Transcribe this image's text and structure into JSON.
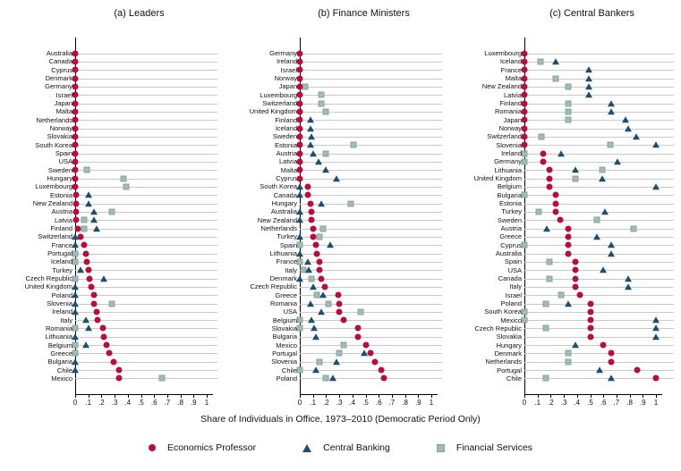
{
  "figure": {
    "xlabel": "Share of Individuals in Office, 1973–2010 (Democratic Period Only)",
    "x_ticks": [
      "0",
      ".1",
      ".2",
      ".3",
      ".4",
      ".5",
      ".6",
      ".7",
      ".8",
      ".9",
      "1"
    ]
  },
  "legend": [
    {
      "key": "ep",
      "label": "Economics Professor",
      "marker": "circle-icon",
      "color": "#b5103d"
    },
    {
      "key": "cb",
      "label": "Central Banking",
      "marker": "triangle-icon",
      "color": "#1f4e6d"
    },
    {
      "key": "fs",
      "label": "Financial Services",
      "marker": "square-icon",
      "color": "#a3bbb1"
    }
  ],
  "chart_data": [
    {
      "type": "scatter",
      "title": "(a) Leaders",
      "xlim": [
        0,
        1
      ],
      "grid": true,
      "series_legend": {
        "ep": "Economics Professor",
        "cb": "Central Banking",
        "fs": "Financial Services"
      },
      "rows": [
        {
          "c": "Australia",
          "ep": 0
        },
        {
          "c": "Canada",
          "ep": 0
        },
        {
          "c": "Cyprus",
          "ep": 0
        },
        {
          "c": "Denmark",
          "ep": 0
        },
        {
          "c": "Germany",
          "ep": 0
        },
        {
          "c": "Israel",
          "ep": 0
        },
        {
          "c": "Japan",
          "ep": 0
        },
        {
          "c": "Malta",
          "ep": 0
        },
        {
          "c": "Netherlands",
          "ep": 0
        },
        {
          "c": "Norway",
          "ep": 0
        },
        {
          "c": "Slovakia",
          "ep": 0
        },
        {
          "c": "South Korea",
          "ep": 0
        },
        {
          "c": "Spain",
          "ep": 0
        },
        {
          "c": "USA",
          "ep": 0
        },
        {
          "c": "Sweden",
          "ep": 0,
          "fs": 0.09
        },
        {
          "c": "Hungary",
          "ep": 0,
          "fs": 0.37
        },
        {
          "c": "Luxembourg",
          "ep": 0,
          "fs": 0.39
        },
        {
          "c": "Estonia",
          "ep": 0.01,
          "cb": 0.1
        },
        {
          "c": "New Zealand",
          "ep": 0.01,
          "cb": 0.1
        },
        {
          "c": "Austria",
          "ep": 0.01,
          "cb": 0.14,
          "fs": 0.28
        },
        {
          "c": "Latvia",
          "ep": 0.01,
          "fs": 0.07,
          "cb": 0.14
        },
        {
          "c": "Finland",
          "ep": 0.02,
          "fs": 0.07,
          "cb": 0.16
        },
        {
          "c": "Switzerland",
          "cb": 0,
          "ep": 0.04
        },
        {
          "c": "France",
          "cb": 0,
          "ep": 0.07
        },
        {
          "c": "Portugal",
          "fs": 0,
          "ep": 0.08
        },
        {
          "c": "Iceland",
          "fs": 0,
          "ep": 0.09
        },
        {
          "c": "Turkey",
          "cb": 0.04,
          "ep": 0.1
        },
        {
          "c": "Czech Republic",
          "fs": 0,
          "ep": 0.11,
          "cb": 0.22
        },
        {
          "c": "United Kingdom",
          "cb": 0,
          "ep": 0.12
        },
        {
          "c": "Poland",
          "cb": 0,
          "ep": 0.14
        },
        {
          "c": "Slovenia",
          "cb": 0,
          "ep": 0.14,
          "fs": 0.28
        },
        {
          "c": "Ireland",
          "cb": 0,
          "ep": 0.16
        },
        {
          "c": "Italy",
          "cb": 0.08,
          "ep": 0.17
        },
        {
          "c": "Romania",
          "fs": 0,
          "cb": 0.1,
          "ep": 0.21
        },
        {
          "c": "Lithuania",
          "cb": 0,
          "ep": 0.22
        },
        {
          "c": "Belgium",
          "fs": 0,
          "cb": 0.08,
          "ep": 0.24
        },
        {
          "c": "Greece",
          "fs": 0,
          "ep": 0.26
        },
        {
          "c": "Bulgaria",
          "cb": 0,
          "ep": 0.29
        },
        {
          "c": "Chile",
          "cb": 0,
          "ep": 0.33
        },
        {
          "c": "Mexico",
          "ep": 0.33,
          "fs": 0.66
        }
      ]
    },
    {
      "type": "scatter",
      "title": "(b) Finance Ministers",
      "xlim": [
        0,
        1
      ],
      "grid": true,
      "series_legend": {
        "ep": "Economics Professor",
        "cb": "Central Banking",
        "fs": "Financial Services"
      },
      "rows": [
        {
          "c": "Germany",
          "ep": 0
        },
        {
          "c": "Ireland",
          "ep": 0
        },
        {
          "c": "Israel",
          "ep": 0
        },
        {
          "c": "Norway",
          "ep": 0
        },
        {
          "c": "Japan",
          "ep": 0,
          "fs": 0.04
        },
        {
          "c": "Luxembourg",
          "ep": 0,
          "fs": 0.16
        },
        {
          "c": "Switzerland",
          "ep": 0,
          "fs": 0.16
        },
        {
          "c": "United Kingdom",
          "ep": 0,
          "fs": 0.2
        },
        {
          "c": "Finland",
          "ep": 0,
          "cb": 0.08
        },
        {
          "c": "Iceland",
          "ep": 0,
          "cb": 0.08
        },
        {
          "c": "Sweden",
          "ep": 0,
          "cb": 0.09
        },
        {
          "c": "Estonia",
          "ep": 0,
          "cb": 0.08,
          "fs": 0.41
        },
        {
          "c": "Austria",
          "ep": 0,
          "cb": 0.1,
          "fs": 0.2
        },
        {
          "c": "Latvia",
          "ep": 0,
          "cb": 0.14
        },
        {
          "c": "Malta",
          "ep": 0,
          "cb": 0.2
        },
        {
          "c": "Cyprus",
          "ep": 0,
          "cb": 0.28
        },
        {
          "c": "South Korea",
          "cb": 0,
          "ep": 0.06
        },
        {
          "c": "Canada",
          "cb": 0,
          "ep": 0.06
        },
        {
          "c": "Hungary",
          "ep": 0.08,
          "cb": 0.16,
          "fs": 0.39
        },
        {
          "c": "Australia",
          "cb": 0,
          "ep": 0.09
        },
        {
          "c": "New Zealand",
          "cb": 0,
          "ep": 0.09
        },
        {
          "c": "Netherlands",
          "ep": 0.1,
          "fs": 0.18
        },
        {
          "c": "Turkey",
          "cb": 0,
          "ep": 0.1,
          "fs": 0.15
        },
        {
          "c": "Spain",
          "fs": 0,
          "ep": 0.12,
          "cb": 0.23
        },
        {
          "c": "Lithuania",
          "cb": 0,
          "ep": 0.13
        },
        {
          "c": "France",
          "fs": 0,
          "cb": 0.06,
          "ep": 0.15
        },
        {
          "c": "Italy",
          "fs": 0.03,
          "cb": 0.07,
          "ep": 0.15
        },
        {
          "c": "Denmark",
          "cb": 0,
          "fs": 0.09,
          "ep": 0.16
        },
        {
          "c": "Czech Republic",
          "cb": 0.1,
          "ep": 0.19
        },
        {
          "c": "Greece",
          "fs": 0.13,
          "cb": 0.18,
          "ep": 0.29
        },
        {
          "c": "Romania",
          "cb": 0.08,
          "fs": 0.22,
          "ep": 0.3
        },
        {
          "c": "USA",
          "cb": 0.16,
          "ep": 0.3,
          "fs": 0.46
        },
        {
          "c": "Belgium",
          "fs": 0,
          "cb": 0.09,
          "ep": 0.33
        },
        {
          "c": "Slovakia",
          "fs": 0,
          "cb": 0.11,
          "ep": 0.44
        },
        {
          "c": "Bulgaria",
          "cb": 0.12,
          "ep": 0.44
        },
        {
          "c": "Mexico",
          "fs": 0.33,
          "ep": 0.5
        },
        {
          "c": "Portugal",
          "fs": 0.3,
          "cb": 0.49,
          "ep": 0.54
        },
        {
          "c": "Slovenia",
          "fs": 0.15,
          "cb": 0.28,
          "ep": 0.57
        },
        {
          "c": "Chile",
          "fs": 0,
          "cb": 0.12,
          "ep": 0.62
        },
        {
          "c": "Poland",
          "fs": 0.2,
          "cb": 0.25,
          "ep": 0.64
        }
      ]
    },
    {
      "type": "scatter",
      "title": "(c) Central Bankers",
      "xlim": [
        0,
        1
      ],
      "grid": true,
      "series_legend": {
        "ep": "Economics Professor",
        "cb": "Central Banking",
        "fs": "Financial Services"
      },
      "rows": [
        {
          "c": "Luxembourg",
          "ep": 0
        },
        {
          "c": "Iceland",
          "ep": 0,
          "fs": 0.12,
          "cb": 0.24
        },
        {
          "c": "France",
          "ep": 0,
          "cb": 0.49
        },
        {
          "c": "Malta",
          "ep": 0,
          "fs": 0.24,
          "cb": 0.49
        },
        {
          "c": "New Zealand",
          "ep": 0,
          "fs": 0.33,
          "cb": 0.49
        },
        {
          "c": "Latvia",
          "ep": 0,
          "cb": 0.49
        },
        {
          "c": "Finland",
          "ep": 0,
          "fs": 0.33,
          "cb": 0.66
        },
        {
          "c": "Romania",
          "ep": 0,
          "fs": 0.33,
          "cb": 0.66
        },
        {
          "c": "Japan",
          "ep": 0,
          "fs": 0.33,
          "cb": 0.77
        },
        {
          "c": "Norway",
          "ep": 0,
          "cb": 0.79
        },
        {
          "c": "Switzerland",
          "ep": 0,
          "fs": 0.13,
          "cb": 0.85
        },
        {
          "c": "Slovenia",
          "ep": 0,
          "fs": 0.65,
          "cb": 1.0
        },
        {
          "c": "Ireland",
          "fs": 0,
          "ep": 0.14,
          "cb": 0.28
        },
        {
          "c": "Germany",
          "fs": 0,
          "ep": 0.14,
          "cb": 0.71
        },
        {
          "c": "Lithuania",
          "ep": 0.19,
          "cb": 0.39,
          "fs": 0.59
        },
        {
          "c": "United Kingdom",
          "ep": 0.19,
          "fs": 0.39,
          "cb": 0.59
        },
        {
          "c": "Belgium",
          "ep": 0.19,
          "cb": 1.0
        },
        {
          "c": "Bulgaria",
          "fs": 0,
          "ep": 0.24
        },
        {
          "c": "Estonia",
          "ep": 0.24
        },
        {
          "c": "Turkey",
          "fs": 0.11,
          "ep": 0.24,
          "cb": 0.61
        },
        {
          "c": "Sweden",
          "ep": 0.27,
          "fs": 0.55
        },
        {
          "c": "Austria",
          "cb": 0.17,
          "ep": 0.33,
          "fs": 0.83
        },
        {
          "c": "Greece",
          "ep": 0.33,
          "cb": 0.55
        },
        {
          "c": "Cyprus",
          "fs": 0,
          "ep": 0.33,
          "cb": 0.66
        },
        {
          "c": "Australia",
          "ep": 0.33,
          "cb": 0.66
        },
        {
          "c": "Spain",
          "fs": 0.19,
          "ep": 0.39
        },
        {
          "c": "USA",
          "ep": 0.39,
          "cb": 0.6
        },
        {
          "c": "Canada",
          "fs": 0.19,
          "ep": 0.39,
          "cb": 0.79
        },
        {
          "c": "Italy",
          "ep": 0.39,
          "cb": 0.79
        },
        {
          "c": "Israel",
          "fs": 0.28,
          "ep": 0.42
        },
        {
          "c": "Poland",
          "fs": 0.16,
          "cb": 0.33,
          "ep": 0.5
        },
        {
          "c": "South Korea",
          "fs": 0,
          "ep": 0.5
        },
        {
          "c": "Mexico",
          "fs": 0,
          "ep": 0.5,
          "cb": 1.0
        },
        {
          "c": "Czech Republic",
          "fs": 0.16,
          "ep": 0.5,
          "cb": 1.0
        },
        {
          "c": "Slovakia",
          "ep": 0.5,
          "cb": 1.0
        },
        {
          "c": "Hungary",
          "cb": 0.39,
          "ep": 0.6
        },
        {
          "c": "Denmark",
          "fs": 0.33,
          "ep": 0.66
        },
        {
          "c": "Netherlands",
          "fs": 0.33,
          "ep": 0.66
        },
        {
          "c": "Portugal",
          "cb": 0.57,
          "ep": 0.86
        },
        {
          "c": "Chile",
          "fs": 0.16,
          "cb": 0.66,
          "ep": 1.0
        }
      ]
    }
  ]
}
